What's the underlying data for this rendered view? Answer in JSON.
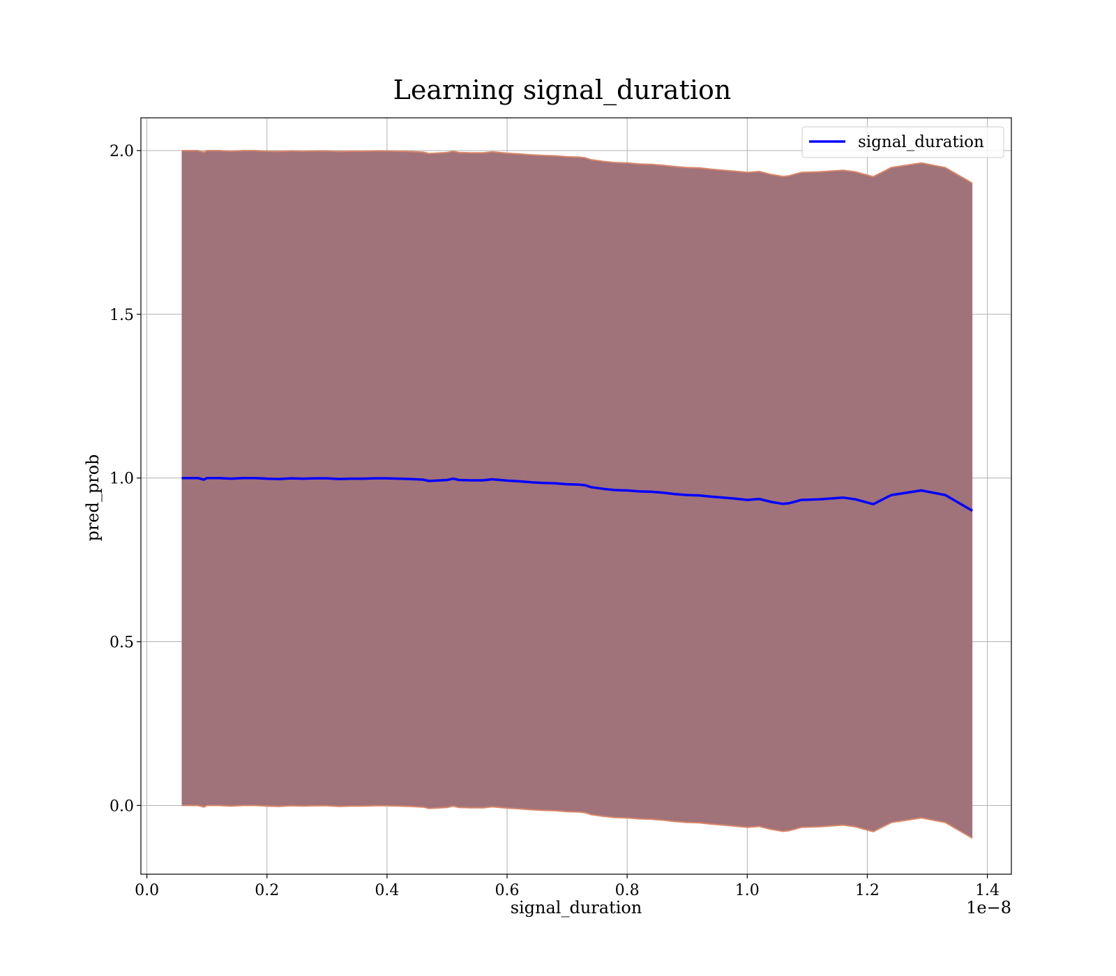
{
  "chart_data": {
    "type": "line",
    "title": "Learning signal_duration",
    "xlabel": "signal_duration",
    "ylabel": "pred_prob",
    "x_offset_label": "1e−8",
    "xlim": [
      -0.01,
      1.44
    ],
    "ylim": [
      -0.21,
      2.1
    ],
    "x_ticks": [
      0.0,
      0.2,
      0.4,
      0.6,
      0.8,
      1.0,
      1.2,
      1.4
    ],
    "x_tick_labels": [
      "0.0",
      "0.2",
      "0.4",
      "0.6",
      "0.8",
      "1.0",
      "1.2",
      "1.4"
    ],
    "y_ticks": [
      0.0,
      0.5,
      1.0,
      1.5,
      2.0
    ],
    "y_tick_labels": [
      "0.0",
      "0.5",
      "1.0",
      "1.5",
      "2.0"
    ],
    "grid": true,
    "legend_position": "top-right",
    "colors": {
      "line": "#0000ff",
      "band_fill": "#a0727a",
      "band_edge": "#d8876a",
      "grid": "#b0b0b0"
    },
    "series": [
      {
        "name": "signal_duration",
        "x": [
          0.058,
          0.07,
          0.085,
          0.095,
          0.1,
          0.12,
          0.14,
          0.16,
          0.18,
          0.2,
          0.22,
          0.24,
          0.26,
          0.28,
          0.3,
          0.32,
          0.34,
          0.36,
          0.38,
          0.4,
          0.42,
          0.44,
          0.46,
          0.47,
          0.49,
          0.5,
          0.51,
          0.52,
          0.54,
          0.56,
          0.575,
          0.6,
          0.62,
          0.64,
          0.66,
          0.68,
          0.7,
          0.72,
          0.73,
          0.74,
          0.76,
          0.78,
          0.8,
          0.82,
          0.84,
          0.86,
          0.88,
          0.9,
          0.92,
          0.94,
          0.96,
          0.98,
          1.0,
          1.02,
          1.04,
          1.06,
          1.07,
          1.09,
          1.12,
          1.16,
          1.18,
          1.21,
          1.24,
          1.29,
          1.33,
          1.375
        ],
        "y": [
          1.0,
          1.0,
          1.0,
          0.995,
          1.0,
          1.0,
          0.998,
          1.0,
          1.0,
          0.998,
          0.997,
          0.999,
          0.998,
          0.999,
          0.999,
          0.997,
          0.998,
          0.998,
          0.999,
          0.999,
          0.998,
          0.997,
          0.995,
          0.991,
          0.993,
          0.994,
          0.998,
          0.994,
          0.993,
          0.993,
          0.996,
          0.992,
          0.99,
          0.987,
          0.985,
          0.984,
          0.981,
          0.98,
          0.978,
          0.972,
          0.967,
          0.963,
          0.962,
          0.959,
          0.958,
          0.955,
          0.951,
          0.948,
          0.947,
          0.943,
          0.94,
          0.937,
          0.933,
          0.936,
          0.927,
          0.921,
          0.923,
          0.933,
          0.935,
          0.94,
          0.935,
          0.92,
          0.948,
          0.962,
          0.948,
          0.9
        ]
      }
    ],
    "band": {
      "lower": [
        0.0,
        0.0,
        0.0,
        -0.005,
        0.0,
        0.0,
        -0.002,
        0.0,
        0.0,
        -0.002,
        -0.003,
        -0.001,
        -0.002,
        -0.001,
        -0.001,
        -0.003,
        -0.002,
        -0.002,
        -0.001,
        -0.001,
        -0.002,
        -0.003,
        -0.005,
        -0.009,
        -0.007,
        -0.006,
        -0.002,
        -0.006,
        -0.007,
        -0.007,
        -0.004,
        -0.008,
        -0.01,
        -0.013,
        -0.015,
        -0.016,
        -0.019,
        -0.02,
        -0.022,
        -0.028,
        -0.033,
        -0.037,
        -0.038,
        -0.041,
        -0.042,
        -0.045,
        -0.049,
        -0.052,
        -0.053,
        -0.057,
        -0.06,
        -0.063,
        -0.067,
        -0.064,
        -0.073,
        -0.079,
        -0.077,
        -0.067,
        -0.065,
        -0.06,
        -0.065,
        -0.08,
        -0.052,
        -0.038,
        -0.052,
        -0.1
      ],
      "upper": [
        2.0,
        2.0,
        2.0,
        1.995,
        2.0,
        2.0,
        1.998,
        2.0,
        2.0,
        1.998,
        1.997,
        1.999,
        1.998,
        1.999,
        1.999,
        1.997,
        1.998,
        1.998,
        1.999,
        1.999,
        1.998,
        1.997,
        1.995,
        1.991,
        1.993,
        1.994,
        1.998,
        1.994,
        1.993,
        1.993,
        1.996,
        1.992,
        1.99,
        1.987,
        1.985,
        1.984,
        1.981,
        1.98,
        1.978,
        1.972,
        1.967,
        1.963,
        1.962,
        1.959,
        1.958,
        1.955,
        1.951,
        1.948,
        1.947,
        1.943,
        1.94,
        1.937,
        1.933,
        1.936,
        1.927,
        1.921,
        1.923,
        1.933,
        1.935,
        1.94,
        1.935,
        1.92,
        1.948,
        1.962,
        1.948,
        1.9
      ]
    }
  }
}
